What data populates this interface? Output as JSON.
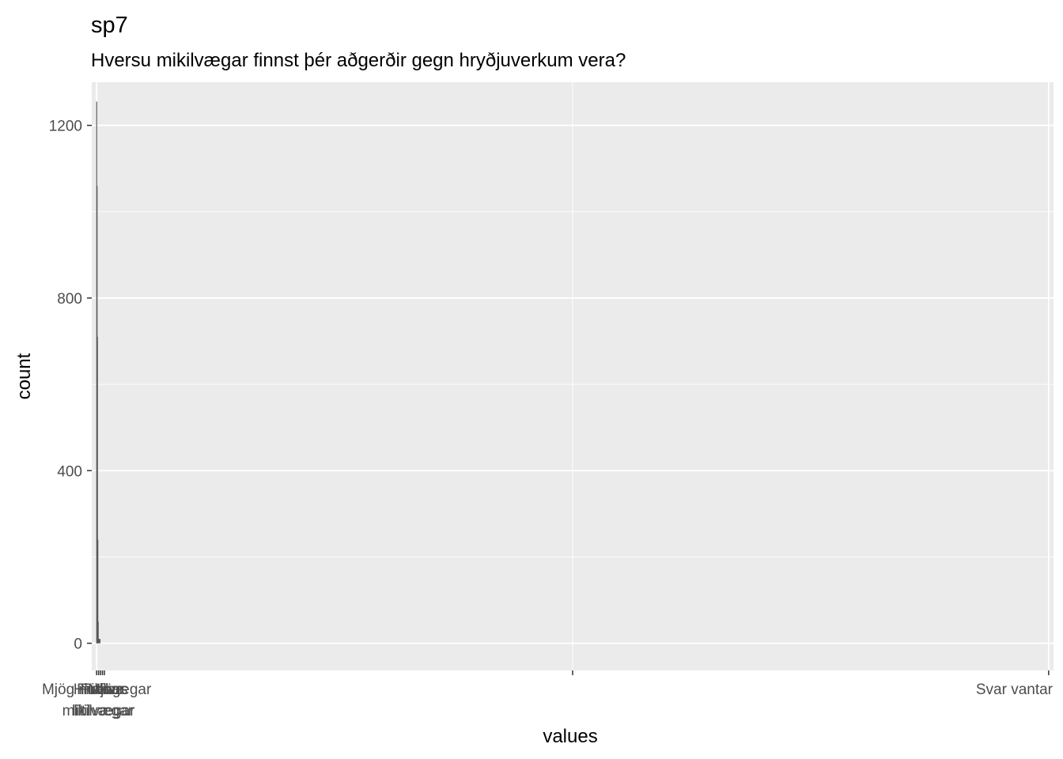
{
  "chart_data": {
    "type": "bar",
    "title": "sp7",
    "subtitle": "Hversu mikilvægar finnst þér aðgerðir gegn hryðjuverkum vera?",
    "xlabel": "values",
    "ylabel": "count",
    "ylim": [
      -63,
      1300
    ],
    "yticks": [
      0,
      400,
      800,
      1200
    ],
    "xlim": [
      0.5,
      99.5
    ],
    "x_ticks": [
      {
        "x": 1,
        "label": "Mjög mikilvægar"
      },
      {
        "x": 1.2,
        "label": "Frekar mikilvægar"
      },
      {
        "x": 1.4,
        "label": "Hlutlaus"
      },
      {
        "x": 1.6,
        "label": "Frekar lítilvægar"
      },
      {
        "x": 1.8,
        "label": "Mjög lítilvægar"
      },
      {
        "x": 50,
        "label": ""
      },
      {
        "x": 99,
        "label": "Svar vantar"
      }
    ],
    "bars": [
      {
        "x": 1.0,
        "value": 1255
      },
      {
        "x": 1.04,
        "value": 1060
      },
      {
        "x": 1.08,
        "value": 710
      },
      {
        "x": 1.12,
        "value": 240
      },
      {
        "x": 1.16,
        "value": 50
      }
    ],
    "baseline_bar": {
      "x_start": 1.0,
      "x_end": 1.4,
      "value": 10
    },
    "bar_color": "#595959",
    "panel_color": "#ebebeb",
    "grid_color": "#ffffff",
    "grid": true,
    "legend": "none"
  }
}
